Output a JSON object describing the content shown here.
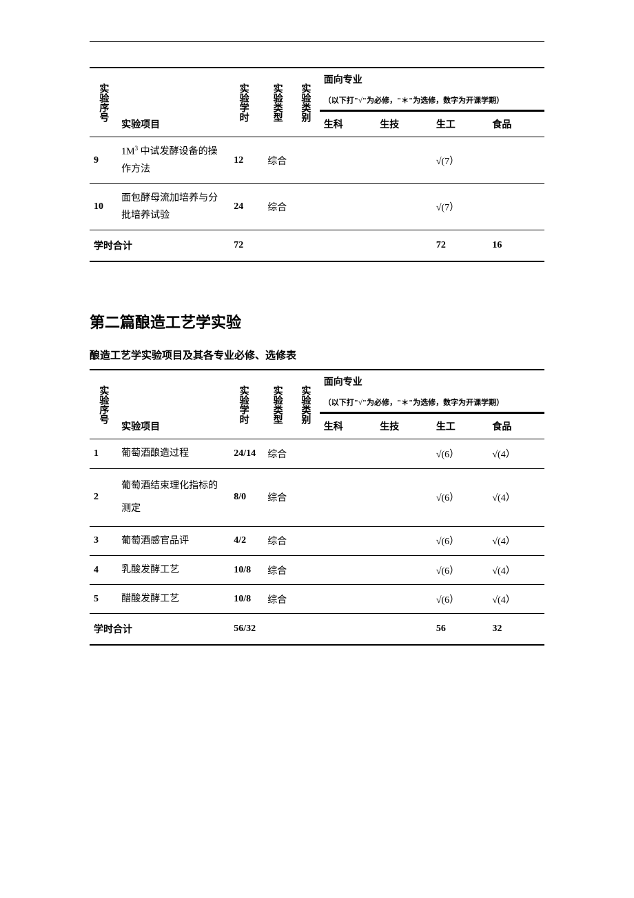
{
  "top_hr_present": true,
  "table1": {
    "headers": {
      "seq": "实验序号",
      "project": "实验项目",
      "hours": "实验学时",
      "type": "实验类型",
      "category": "实验类别",
      "major_group": "面向专业",
      "major_note": "（以下打\"√\"为必修，\"＊\"为选修，数字为开课学期）",
      "majors": [
        "生科",
        "生技",
        "生工",
        "食品"
      ]
    },
    "rows": [
      {
        "seq": "9",
        "project_html": "1M<sup>3</sup> 中试发酵设备的操作方法",
        "hours": "12",
        "type": "综合",
        "category": "",
        "shengke": "",
        "shengji": "",
        "shenggong": "√(7）",
        "shipin": ""
      },
      {
        "seq": "10",
        "project": "面包酵母流加培养与分批培养试验",
        "hours": "24",
        "type": "综合",
        "category": "",
        "shengke": "",
        "shengji": "",
        "shenggong": "√(7）",
        "shipin": ""
      }
    ],
    "total": {
      "label": "学时合计",
      "hours": "72",
      "shenggong": "72",
      "shipin": "16"
    }
  },
  "section2": {
    "title": "第二篇酿造工艺学实验",
    "subtitle": "酿造工艺学实验项目及其各专业必修、选修表"
  },
  "table2": {
    "headers": {
      "seq": "实验序号",
      "project": "实验项目",
      "hours": "实验学时",
      "type": "实验类型",
      "category": "实验类别",
      "major_group": "面向专业",
      "major_note": "（以下打\"√\"为必修，\"＊\"为选修，数字为开课学期）",
      "majors": [
        "生科",
        "生技",
        "生工",
        "食品"
      ]
    },
    "rows": [
      {
        "seq": "1",
        "project": "葡萄酒酿造过程",
        "hours": "24/14",
        "type": "综合",
        "category": "",
        "shengke": "",
        "shengji": "",
        "shenggong": "√(6）",
        "shipin": "√(4）"
      },
      {
        "seq": "2",
        "project": "葡萄酒结束理化指标的测定",
        "hours": "8/0",
        "type": "综合",
        "category": "",
        "shengke": "",
        "shengji": "",
        "shenggong": "√(6）",
        "shipin": "√(4）"
      },
      {
        "seq": "3",
        "project": "葡萄酒感官品评",
        "hours": "4/2",
        "type": "综合",
        "category": "",
        "shengke": "",
        "shengji": "",
        "shenggong": "√(6）",
        "shipin": "√(4）"
      },
      {
        "seq": "4",
        "project": "乳酸发酵工艺",
        "hours": "10/8",
        "type": "综合",
        "category": "",
        "shengke": "",
        "shengji": "",
        "shenggong": "√(6）",
        "shipin": "√(4）"
      },
      {
        "seq": "5",
        "project": "醋酸发酵工艺",
        "hours": "10/8",
        "type": "综合",
        "category": "",
        "shengke": "",
        "shengji": "",
        "shenggong": "√(6）",
        "shipin": "√(4）"
      }
    ],
    "total": {
      "label": "学时合计",
      "hours": "56/32",
      "shenggong": "56",
      "shipin": "32"
    }
  }
}
